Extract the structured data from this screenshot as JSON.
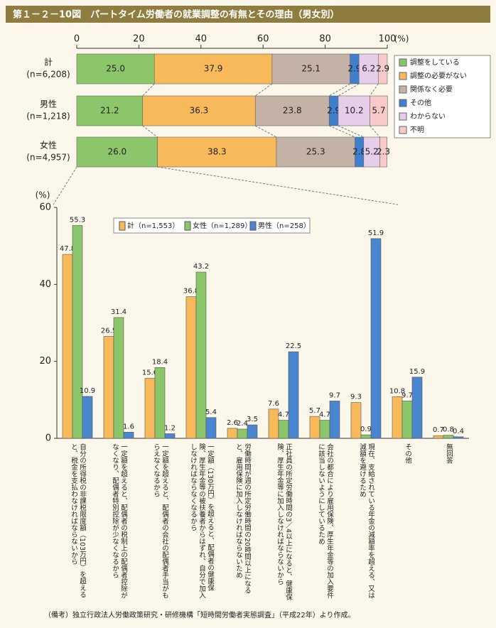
{
  "title": "第１－２－10図　パートタイム労働者の就業調整の有無とその理由（男女別）",
  "chart_data": [
    {
      "type": "stacked_bar",
      "orientation": "horizontal",
      "xlabel": "(%)",
      "categories": [
        [
          "計",
          "(n=6,208)"
        ],
        [
          "男性",
          "(n=1,218)"
        ],
        [
          "女性",
          "(n=4,957)"
        ]
      ],
      "xlim": [
        0,
        100
      ],
      "xticks": [
        0,
        20,
        40,
        60,
        80,
        100
      ],
      "legend": "right",
      "series": [
        {
          "name": "調整をしている",
          "color": "#8cc66a",
          "values": [
            25.0,
            21.2,
            26.0
          ],
          "value_labels": [
            "25.0",
            "21.2",
            "26.0"
          ]
        },
        {
          "name": "調整の必要がない",
          "color": "#f8b95a",
          "values": [
            37.9,
            36.3,
            38.3
          ],
          "value_labels": [
            "37.9",
            "36.3",
            "38.3"
          ]
        },
        {
          "name": "関係なく必要",
          "color": "#c4b2a6",
          "values": [
            25.1,
            23.8,
            25.3
          ],
          "value_labels": [
            "25.1",
            "23.8",
            "25.3"
          ]
        },
        {
          "name": "その他",
          "color": "#3f7fcc",
          "values": [
            2.9,
            2.9,
            2.8
          ],
          "value_labels": [
            "2.9",
            "2.9",
            "2.8"
          ]
        },
        {
          "name": "わからない",
          "color": "#e6cdea",
          "values": [
            6.2,
            10.2,
            5.2
          ],
          "value_labels": [
            "6.2",
            "10.2",
            "5.2"
          ]
        },
        {
          "name": "不明",
          "color": "#f9c9c9",
          "values": [
            2.9,
            5.7,
            2.3
          ],
          "value_labels": [
            "2.9",
            "5.7",
            "2.3"
          ]
        }
      ]
    },
    {
      "type": "bar",
      "ylabel": "(%)",
      "ylim": [
        0,
        60
      ],
      "yticks": [
        0,
        20,
        40,
        60
      ],
      "legend": "top",
      "categories": [
        "自分の所得税の非課税限度額（103万円）を超えると、税金を支払わなければならないから",
        "一定額を超えると、配偶者の税制上の配偶者控除がなくなり、配偶者特別控除が少なくなるから",
        "一定額を超えると、配偶者の会社の配偶者手当がもらえなくなるから",
        "一定額（130万円）を超えると、配偶者の健康保険、厚生年金等の被扶養者からはずれ、自分で加入しなければならなくなるから",
        "労働時間が週の所定労働時間の20時間以上になると、雇用保険に加入しなければならないため",
        "正社員の所定労働時間の3／4以上になると、健康保険、厚生年金等に加入しなければならないから",
        "会社の都合により雇用保険、厚生年金等の加入要件に該当しないようにしているため",
        "現在、支給されている年金の減額率を超える、又は減額を避けるため",
        "その他",
        "無回答"
      ],
      "series": [
        {
          "name": "計（n=1,553）",
          "color": "#f8b95a",
          "values": [
            47.8,
            26.5,
            15.6,
            36.8,
            2.6,
            7.6,
            5.7,
            9.3,
            10.8,
            0.7
          ]
        },
        {
          "name": "女性（n=1,289）",
          "color": "#8cc66a",
          "values": [
            55.3,
            31.4,
            18.4,
            43.2,
            2.4,
            4.7,
            4.7,
            0.9,
            9.7,
            0.8
          ]
        },
        {
          "name": "男性（n=258）",
          "color": "#4a86cf",
          "values": [
            10.9,
            1.6,
            1.2,
            5.4,
            3.5,
            22.5,
            9.7,
            51.9,
            15.9,
            0.4
          ]
        }
      ]
    }
  ],
  "note": "（備考）独立行政法人労働政策研究・研修機構「短時間労働者実態調査」（平成22年）より作成。"
}
